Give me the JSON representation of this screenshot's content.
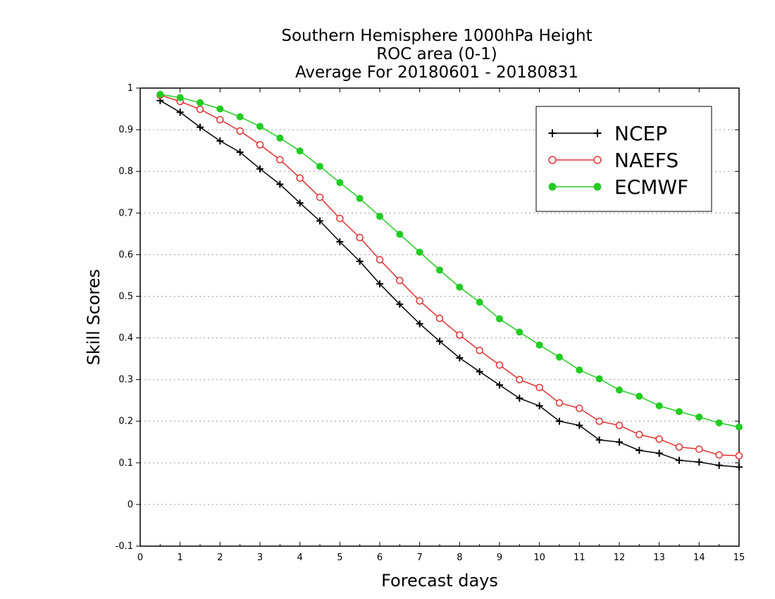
{
  "chart_data": {
    "type": "line",
    "title_lines": [
      "Southern Hemisphere 1000hPa Height",
      "ROC area (0-1)",
      "Average For 20180601 - 20180831"
    ],
    "xlabel": "Forecast days",
    "ylabel": "Skill Scores",
    "xlim": [
      0,
      15
    ],
    "ylim": [
      -0.1,
      1
    ],
    "x_ticks": [
      0,
      1,
      2,
      3,
      4,
      5,
      6,
      7,
      8,
      9,
      10,
      11,
      12,
      13,
      14,
      15
    ],
    "x_tick_labels": [
      "0",
      "1",
      "2",
      "3",
      "4",
      "5",
      "6",
      "7",
      "8",
      "9",
      "10",
      "11",
      "12",
      "13",
      "14",
      "15"
    ],
    "y_ticks": [
      -0.1,
      0,
      0.1,
      0.2,
      0.3,
      0.4,
      0.5,
      0.6,
      0.7,
      0.8,
      0.9,
      1
    ],
    "y_tick_labels": [
      "-0.1",
      "0",
      "0.1",
      "0.2",
      "0.3",
      "0.4",
      "0.5",
      "0.6",
      "0.7",
      "0.8",
      "0.9",
      "1"
    ],
    "grid": true,
    "legend_position": "top-right",
    "x": [
      0.5,
      1,
      1.5,
      2,
      2.5,
      3,
      3.5,
      4,
      4.5,
      5,
      5.5,
      6,
      6.5,
      7,
      7.5,
      8,
      8.5,
      9,
      9.5,
      10,
      10.5,
      11,
      11.5,
      12,
      12.5,
      13,
      13.5,
      14,
      14.5,
      15
    ],
    "series": [
      {
        "name": "NCEP",
        "color": "#000000",
        "marker": "plus",
        "values": [
          0.97,
          0.942,
          0.906,
          0.873,
          0.846,
          0.806,
          0.769,
          0.724,
          0.681,
          0.631,
          0.584,
          0.53,
          0.481,
          0.434,
          0.392,
          0.352,
          0.319,
          0.287,
          0.255,
          0.237,
          0.2,
          0.19,
          0.155,
          0.15,
          0.13,
          0.123,
          0.106,
          0.102,
          0.094,
          0.09
        ]
      },
      {
        "name": "NAEFS",
        "color": "#e03030",
        "marker": "open-circle",
        "values": [
          0.983,
          0.968,
          0.949,
          0.924,
          0.897,
          0.864,
          0.828,
          0.784,
          0.738,
          0.687,
          0.641,
          0.588,
          0.538,
          0.489,
          0.447,
          0.407,
          0.37,
          0.335,
          0.3,
          0.281,
          0.244,
          0.231,
          0.2,
          0.19,
          0.168,
          0.157,
          0.138,
          0.133,
          0.119,
          0.117
        ]
      },
      {
        "name": "ECMWF",
        "color": "#22cc22",
        "marker": "filled-circle",
        "values": [
          0.985,
          0.977,
          0.965,
          0.95,
          0.931,
          0.908,
          0.88,
          0.849,
          0.812,
          0.773,
          0.735,
          0.692,
          0.649,
          0.606,
          0.563,
          0.522,
          0.486,
          0.446,
          0.414,
          0.383,
          0.354,
          0.323,
          0.302,
          0.275,
          0.26,
          0.237,
          0.223,
          0.21,
          0.196,
          0.186
        ]
      }
    ]
  }
}
